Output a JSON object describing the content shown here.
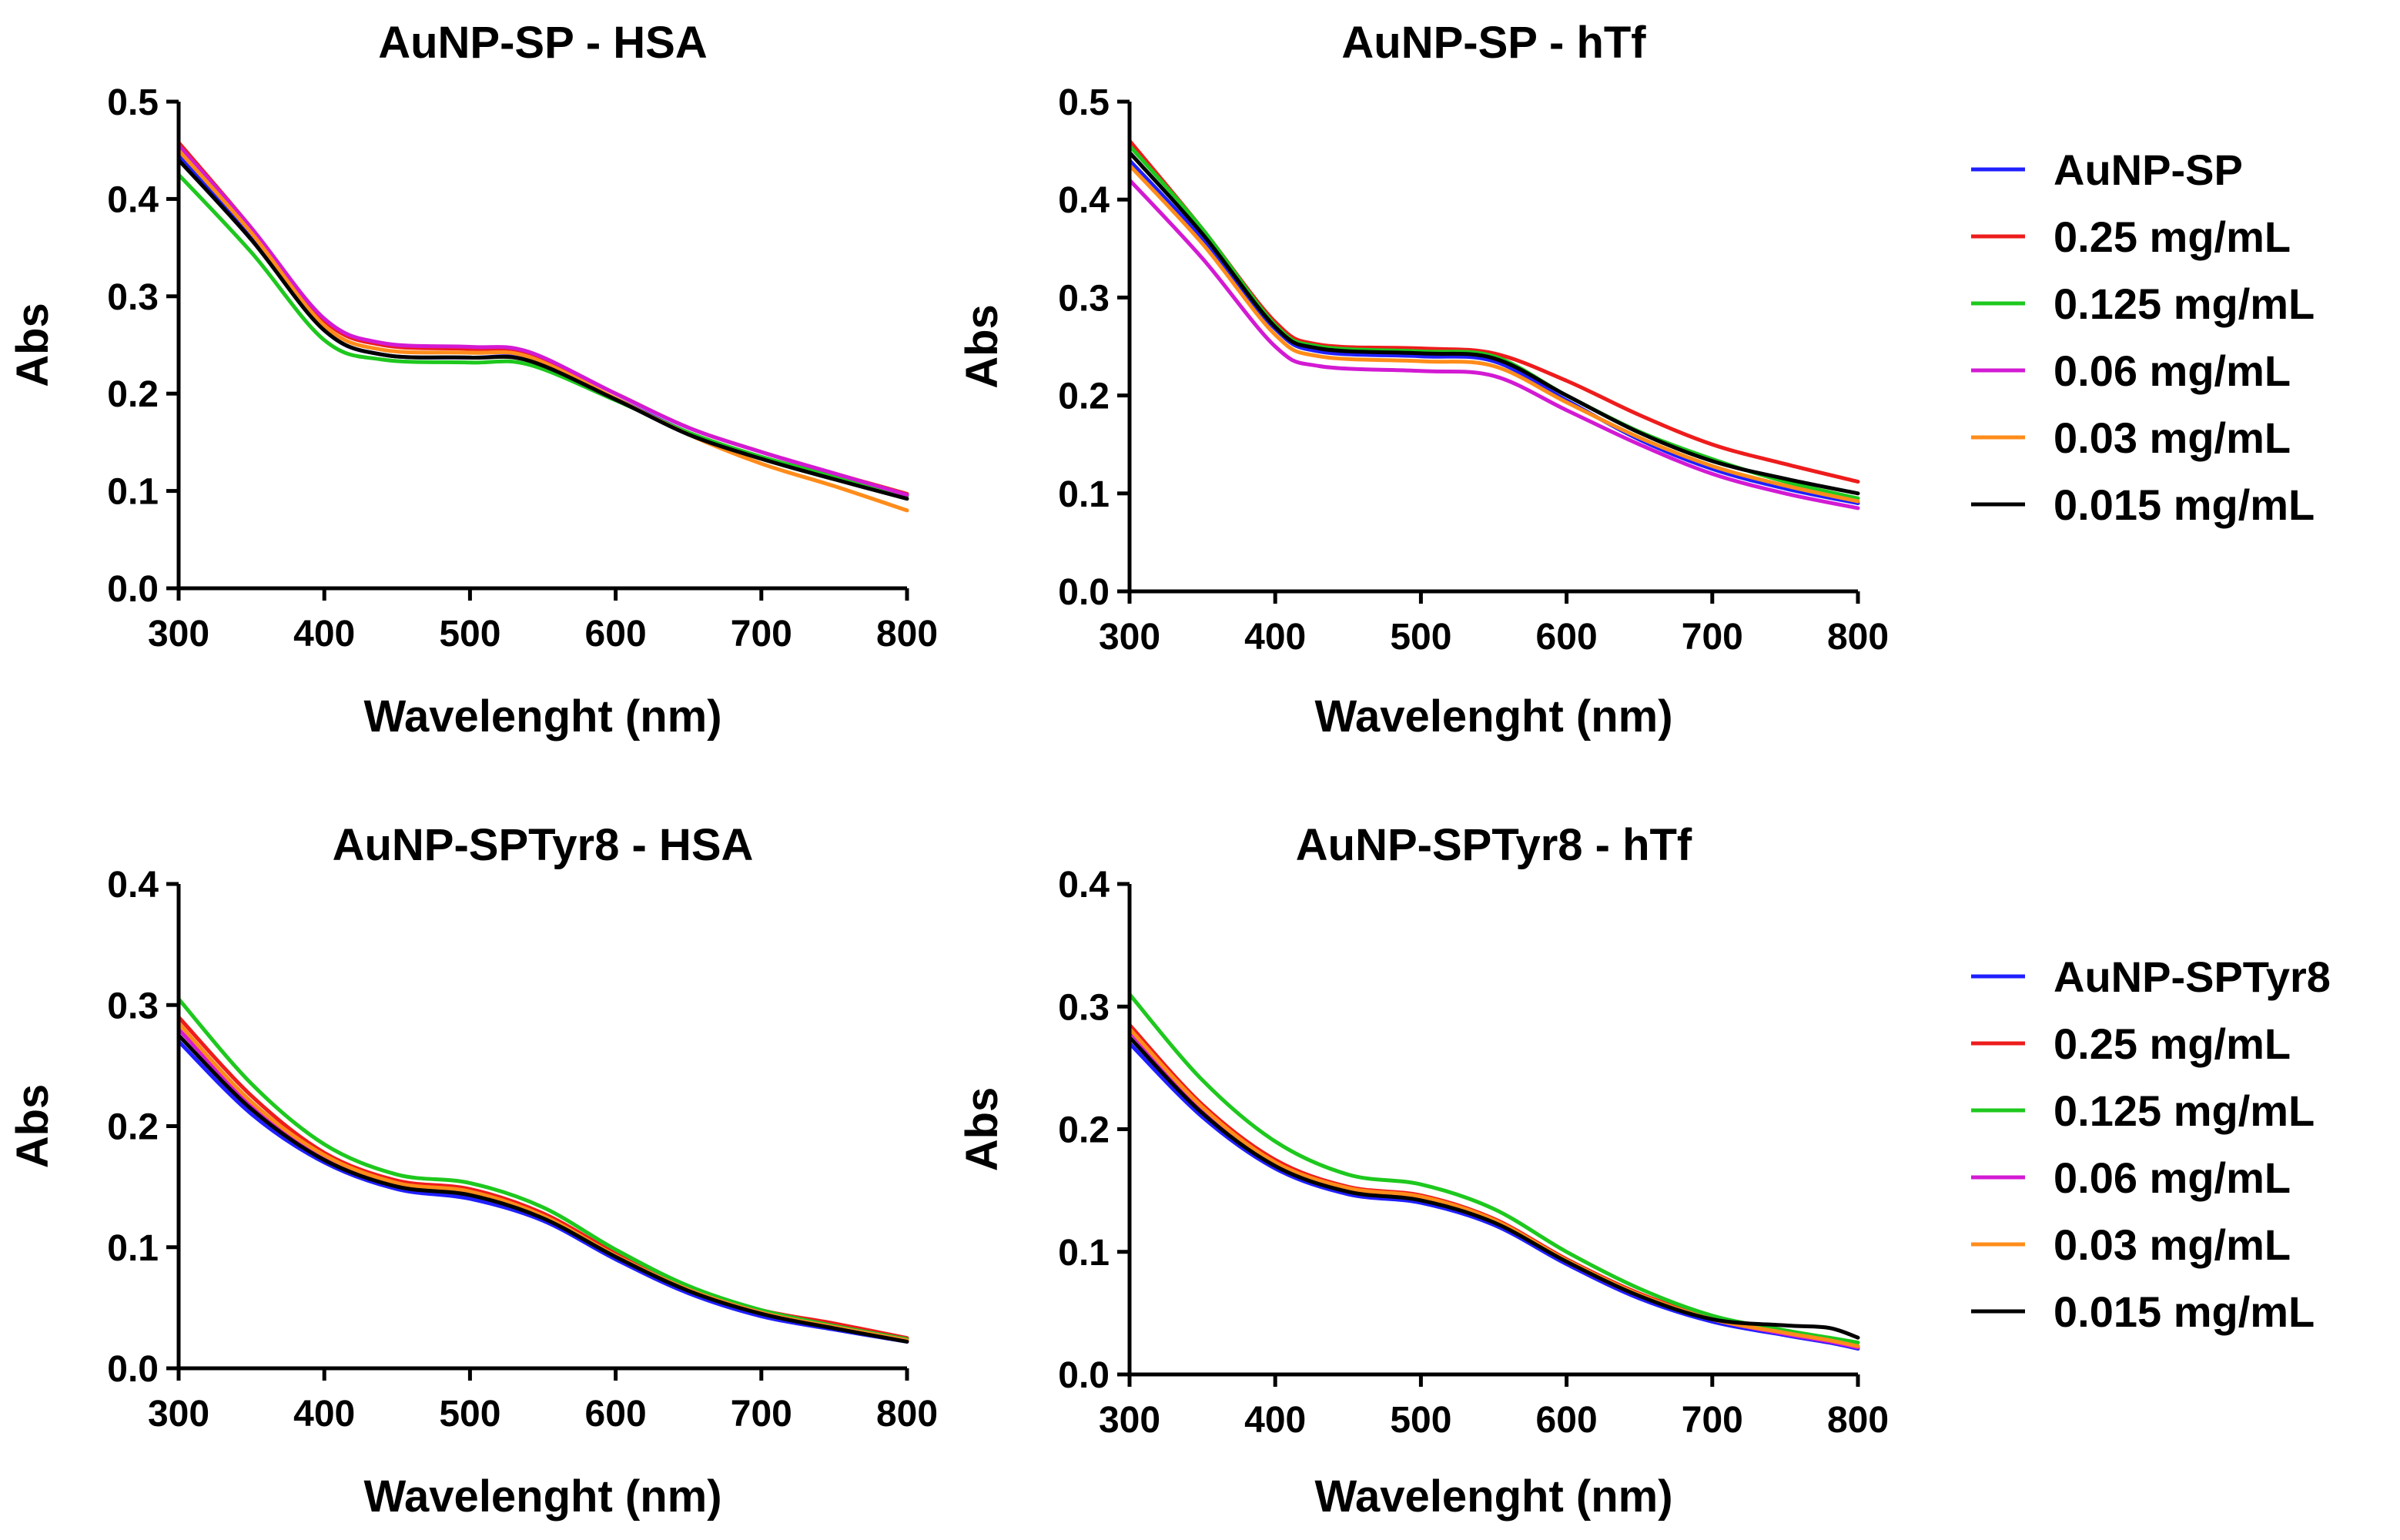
{
  "colors": {
    "blue": "#1f1fff",
    "red": "#ee1c1c",
    "green": "#1ec81e",
    "magenta": "#d31ad3",
    "orange": "#ff8c1a",
    "black": "#000000"
  },
  "legends": [
    {
      "entries": [
        {
          "label": "AuNP-SP",
          "color": "#1f1fff"
        },
        {
          "label": "0.25 mg/mL",
          "color": "#ee1c1c"
        },
        {
          "label": "0.125 mg/mL",
          "color": "#1ec81e"
        },
        {
          "label": "0.06 mg/mL",
          "color": "#d31ad3"
        },
        {
          "label": "0.03 mg/mL",
          "color": "#ff8c1a"
        },
        {
          "label": "0.015 mg/mL",
          "color": "#000000"
        }
      ]
    },
    {
      "entries": [
        {
          "label": "AuNP-SPTyr8",
          "color": "#1f1fff"
        },
        {
          "label": "0.25 mg/mL",
          "color": "#ee1c1c"
        },
        {
          "label": "0.125 mg/mL",
          "color": "#1ec81e"
        },
        {
          "label": "0.06 mg/mL",
          "color": "#d31ad3"
        },
        {
          "label": "0.03 mg/mL",
          "color": "#ff8c1a"
        },
        {
          "label": "0.015 mg/mL",
          "color": "#000000"
        }
      ]
    }
  ],
  "chart_data": [
    {
      "type": "line",
      "title": "AuNP-SP - HSA",
      "xlabel": "Wavelenght (nm)",
      "ylabel": "Abs",
      "xlim": [
        300,
        800
      ],
      "ylim": [
        0,
        0.5
      ],
      "xticks": [
        300,
        400,
        500,
        600,
        700,
        800
      ],
      "xtick_labels": [
        "300",
        "400",
        "500",
        "600",
        "700",
        "800"
      ],
      "yticks": [
        0,
        0.1,
        0.2,
        0.3,
        0.4,
        0.5
      ],
      "ytick_labels": [
        "0.0",
        "0.1",
        "0.2",
        "0.3",
        "0.4",
        "0.5"
      ],
      "grid": false,
      "legend": "right",
      "x": [
        300,
        350,
        400,
        440,
        500,
        540,
        600,
        650,
        700,
        750,
        800
      ],
      "series": [
        {
          "name": "AuNP-SP",
          "color": "#1f1fff",
          "values": [
            0.445,
            0.36,
            0.265,
            0.24,
            0.237,
            0.235,
            0.195,
            0.16,
            0.135,
            0.115,
            0.095
          ]
        },
        {
          "name": "0.25 mg/mL",
          "color": "#ee1c1c",
          "values": [
            0.458,
            0.37,
            0.275,
            0.25,
            0.246,
            0.242,
            0.2,
            0.165,
            0.14,
            0.118,
            0.097
          ]
        },
        {
          "name": "0.125 mg/mL",
          "color": "#1ec81e",
          "values": [
            0.425,
            0.345,
            0.255,
            0.235,
            0.232,
            0.23,
            0.193,
            0.16,
            0.135,
            0.115,
            0.095
          ]
        },
        {
          "name": "0.06 mg/mL",
          "color": "#d31ad3",
          "values": [
            0.455,
            0.37,
            0.277,
            0.252,
            0.248,
            0.243,
            0.2,
            0.165,
            0.14,
            0.118,
            0.096
          ]
        },
        {
          "name": "0.03 mg/mL",
          "color": "#ff8c1a",
          "values": [
            0.45,
            0.365,
            0.27,
            0.245,
            0.242,
            0.238,
            0.195,
            0.158,
            0.128,
            0.105,
            0.08
          ]
        },
        {
          "name": "0.015 mg/mL",
          "color": "#000000",
          "values": [
            0.44,
            0.358,
            0.265,
            0.24,
            0.237,
            0.234,
            0.194,
            0.158,
            0.133,
            0.112,
            0.092
          ]
        }
      ]
    },
    {
      "type": "line",
      "title": "AuNP-SP - hTf",
      "xlabel": "Wavelenght (nm)",
      "ylabel": "Abs",
      "xlim": [
        300,
        800
      ],
      "ylim": [
        0,
        0.5
      ],
      "xticks": [
        300,
        400,
        500,
        600,
        700,
        800
      ],
      "xtick_labels": [
        "300",
        "400",
        "500",
        "600",
        "700",
        "800"
      ],
      "yticks": [
        0,
        0.1,
        0.2,
        0.3,
        0.4,
        0.5
      ],
      "ytick_labels": [
        "0.0",
        "0.1",
        "0.2",
        "0.3",
        "0.4",
        "0.5"
      ],
      "grid": false,
      "legend": "right",
      "x": [
        300,
        350,
        400,
        430,
        500,
        550,
        600,
        650,
        700,
        750,
        800
      ],
      "series": [
        {
          "name": "AuNP-SP",
          "color": "#1f1fff",
          "values": [
            0.44,
            0.36,
            0.268,
            0.245,
            0.24,
            0.235,
            0.195,
            0.155,
            0.125,
            0.105,
            0.09
          ]
        },
        {
          "name": "0.25 mg/mL",
          "color": "#ee1c1c",
          "values": [
            0.46,
            0.37,
            0.275,
            0.252,
            0.248,
            0.243,
            0.215,
            0.18,
            0.15,
            0.13,
            0.112
          ]
        },
        {
          "name": "0.125 mg/mL",
          "color": "#1ec81e",
          "values": [
            0.455,
            0.37,
            0.272,
            0.25,
            0.245,
            0.24,
            0.2,
            0.163,
            0.135,
            0.112,
            0.095
          ]
        },
        {
          "name": "0.06 mg/mL",
          "color": "#d31ad3",
          "values": [
            0.42,
            0.34,
            0.25,
            0.23,
            0.225,
            0.22,
            0.185,
            0.15,
            0.12,
            0.1,
            0.085
          ]
        },
        {
          "name": "0.03 mg/mL",
          "color": "#ff8c1a",
          "values": [
            0.435,
            0.355,
            0.262,
            0.24,
            0.235,
            0.23,
            0.193,
            0.157,
            0.128,
            0.108,
            0.092
          ]
        },
        {
          "name": "0.015 mg/mL",
          "color": "#000000",
          "values": [
            0.448,
            0.365,
            0.27,
            0.248,
            0.243,
            0.238,
            0.2,
            0.162,
            0.133,
            0.115,
            0.1
          ]
        }
      ]
    },
    {
      "type": "line",
      "title": "AuNP-SPTyr8 - HSA",
      "xlabel": "Wavelenght (nm)",
      "ylabel": "Abs",
      "xlim": [
        300,
        800
      ],
      "ylim": [
        0,
        0.4
      ],
      "xticks": [
        300,
        400,
        500,
        600,
        700,
        800
      ],
      "xtick_labels": [
        "300",
        "400",
        "500",
        "600",
        "700",
        "800"
      ],
      "yticks": [
        0,
        0.1,
        0.2,
        0.3,
        0.4
      ],
      "ytick_labels": [
        "0.0",
        "0.1",
        "0.2",
        "0.3",
        "0.4"
      ],
      "grid": false,
      "legend": "right",
      "x": [
        300,
        350,
        400,
        450,
        500,
        550,
        600,
        650,
        700,
        750,
        800
      ],
      "series": [
        {
          "name": "AuNP-SPTyr8",
          "color": "#1f1fff",
          "values": [
            0.27,
            0.21,
            0.17,
            0.148,
            0.14,
            0.122,
            0.09,
            0.062,
            0.043,
            0.032,
            0.022
          ]
        },
        {
          "name": "0.25 mg/mL",
          "color": "#ee1c1c",
          "values": [
            0.29,
            0.225,
            0.178,
            0.155,
            0.148,
            0.128,
            0.095,
            0.067,
            0.048,
            0.037,
            0.025
          ]
        },
        {
          "name": "0.125 mg/mL",
          "color": "#1ec81e",
          "values": [
            0.305,
            0.235,
            0.185,
            0.16,
            0.153,
            0.133,
            0.098,
            0.068,
            0.048,
            0.035,
            0.024
          ]
        },
        {
          "name": "0.06 mg/mL",
          "color": "#d31ad3",
          "values": [
            0.28,
            0.218,
            0.174,
            0.152,
            0.145,
            0.125,
            0.093,
            0.065,
            0.046,
            0.034,
            0.023
          ]
        },
        {
          "name": "0.03 mg/mL",
          "color": "#ff8c1a",
          "values": [
            0.285,
            0.22,
            0.176,
            0.153,
            0.146,
            0.126,
            0.093,
            0.065,
            0.046,
            0.034,
            0.023
          ]
        },
        {
          "name": "0.015 mg/mL",
          "color": "#000000",
          "values": [
            0.275,
            0.214,
            0.172,
            0.15,
            0.143,
            0.124,
            0.092,
            0.064,
            0.045,
            0.033,
            0.022
          ]
        }
      ]
    },
    {
      "type": "line",
      "title": "AuNP-SPTyr8 - hTf",
      "xlabel": "Wavelenght (nm)",
      "ylabel": "Abs",
      "xlim": [
        300,
        800
      ],
      "ylim": [
        0,
        0.4
      ],
      "xticks": [
        300,
        400,
        500,
        600,
        700,
        800
      ],
      "xtick_labels": [
        "300",
        "400",
        "500",
        "600",
        "700",
        "800"
      ],
      "yticks": [
        0,
        0.1,
        0.2,
        0.3,
        0.4
      ],
      "ytick_labels": [
        "0.0",
        "0.1",
        "0.2",
        "0.3",
        "0.4"
      ],
      "grid": false,
      "legend": "right",
      "x": [
        300,
        350,
        400,
        450,
        500,
        550,
        600,
        650,
        700,
        750,
        780,
        800
      ],
      "series": [
        {
          "name": "AuNP-SPTyr8",
          "color": "#1f1fff",
          "values": [
            0.27,
            0.21,
            0.168,
            0.147,
            0.14,
            0.122,
            0.09,
            0.062,
            0.043,
            0.032,
            0.026,
            0.021
          ]
        },
        {
          "name": "0.25 mg/mL",
          "color": "#ee1c1c",
          "values": [
            0.285,
            0.22,
            0.175,
            0.153,
            0.146,
            0.127,
            0.094,
            0.066,
            0.046,
            0.034,
            0.028,
            0.023
          ]
        },
        {
          "name": "0.125 mg/mL",
          "color": "#1ec81e",
          "values": [
            0.31,
            0.24,
            0.19,
            0.163,
            0.155,
            0.135,
            0.1,
            0.07,
            0.048,
            0.036,
            0.03,
            0.026
          ]
        },
        {
          "name": "0.06 mg/mL",
          "color": "#d31ad3",
          "values": [
            0.28,
            0.216,
            0.172,
            0.151,
            0.144,
            0.125,
            0.092,
            0.064,
            0.045,
            0.033,
            0.027,
            0.022
          ]
        },
        {
          "name": "0.03 mg/mL",
          "color": "#ff8c1a",
          "values": [
            0.282,
            0.218,
            0.173,
            0.152,
            0.145,
            0.126,
            0.093,
            0.065,
            0.045,
            0.034,
            0.028,
            0.023
          ]
        },
        {
          "name": "0.015 mg/mL",
          "color": "#000000",
          "values": [
            0.275,
            0.213,
            0.17,
            0.149,
            0.142,
            0.124,
            0.092,
            0.064,
            0.045,
            0.04,
            0.038,
            0.03
          ]
        }
      ]
    }
  ]
}
